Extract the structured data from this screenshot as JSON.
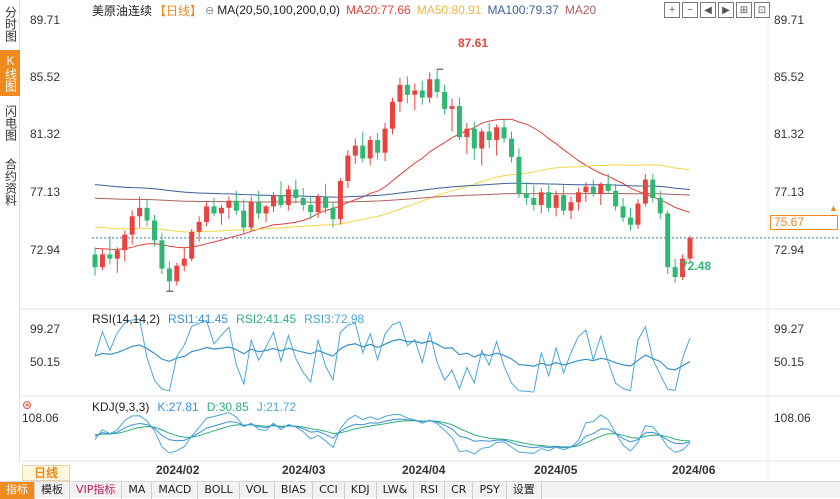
{
  "side_tabs": [
    {
      "label": "分时图",
      "active": false
    },
    {
      "label": "K线图",
      "active": true
    },
    {
      "label": "闪电图",
      "active": false
    },
    {
      "label": "合约资料",
      "active": false
    }
  ],
  "header": {
    "title": "美原油连续",
    "period": "【日线】",
    "gear": "⊖",
    "ma_label": "MA(20,50,100,200,0,0)",
    "ma20": "MA20:77.66",
    "ma50": "MA50:80.91",
    "ma100": "MA100:79.37",
    "ma200": "MA20"
  },
  "toolbar_icons": [
    "plus-icon",
    "minus-icon",
    "left-icon",
    "right-icon",
    "fullscreen-icon",
    "expand-icon"
  ],
  "toolbar_glyphs": [
    "+",
    "−",
    "◀",
    "▶",
    "⊞",
    "⊡"
  ],
  "price_axis": [
    "89.71",
    "85.52",
    "81.32",
    "77.13",
    "72.94"
  ],
  "current_price": "75.67",
  "peak_high": "87.61",
  "peak_low": "72.48",
  "rsi": {
    "label": "RSI(14,14,2)",
    "rsi1": "RSI1:41.45",
    "rsi2": "RSI2:41.45",
    "rsi3": "RSI3:72.98",
    "axis": [
      "99.27",
      "50.15"
    ]
  },
  "kdj": {
    "label": "KDJ(9,3,3)",
    "k": "K:27.81",
    "d": "D:30.85",
    "j": "J:21.72",
    "axis": [
      "108.06"
    ]
  },
  "x_labels": [
    "2024/02",
    "2024/03",
    "2024/04",
    "2024/05",
    "2024/06"
  ],
  "period_tab": "日线",
  "bottom_tabs": [
    {
      "label": "指标",
      "active": true
    },
    {
      "label": "模板"
    },
    {
      "label": "VIP指标",
      "vip": true
    },
    {
      "label": "MA"
    },
    {
      "label": "MACD"
    },
    {
      "label": "BOLL"
    },
    {
      "label": "VOL"
    },
    {
      "label": "BIAS"
    },
    {
      "label": "CCI"
    },
    {
      "label": "KDJ"
    },
    {
      "label": "LW&"
    },
    {
      "label": "RSI"
    },
    {
      "label": "CR"
    },
    {
      "label": "PSY"
    },
    {
      "label": "设置"
    }
  ],
  "colors": {
    "up": "#e8433f",
    "down": "#2eb872",
    "accent": "#ef8a1e",
    "ma20": "#e0403a",
    "ma50": "#f2d54a",
    "ma100": "#3d5f9a",
    "ma200": "#b06060",
    "rsi1": "#3a8fd8",
    "rsi2": "#2ab07a",
    "rsi3": "#4aa8d8"
  },
  "chart_data": {
    "type": "candlestick",
    "ylim": [
      70.85,
      91.8
    ],
    "candles": [
      [
        74.5,
        75.0,
        73.0,
        73.6
      ],
      [
        73.6,
        74.9,
        73.4,
        74.5
      ],
      [
        74.5,
        75.8,
        73.8,
        74.2
      ],
      [
        74.2,
        75.0,
        73.2,
        74.8
      ],
      [
        74.8,
        76.2,
        74.0,
        75.9
      ],
      [
        75.9,
        77.6,
        75.2,
        77.2
      ],
      [
        77.2,
        78.6,
        76.4,
        77.8
      ],
      [
        77.8,
        78.4,
        76.5,
        76.9
      ],
      [
        76.9,
        77.3,
        75.1,
        75.5
      ],
      [
        75.5,
        76.0,
        73.1,
        73.5
      ],
      [
        73.5,
        74.0,
        71.9,
        72.6
      ],
      [
        72.6,
        73.9,
        72.3,
        73.7
      ],
      [
        73.7,
        75.0,
        73.3,
        74.2
      ],
      [
        74.2,
        76.3,
        74.0,
        76.1
      ],
      [
        76.1,
        77.2,
        75.4,
        76.8
      ],
      [
        76.8,
        78.2,
        76.5,
        77.9
      ],
      [
        77.9,
        78.5,
        77.2,
        77.4
      ],
      [
        77.4,
        78.0,
        76.6,
        77.8
      ],
      [
        77.8,
        78.6,
        77.0,
        78.3
      ],
      [
        78.3,
        79.0,
        77.3,
        77.6
      ],
      [
        77.6,
        78.4,
        76.0,
        76.4
      ],
      [
        76.4,
        78.6,
        76.2,
        78.2
      ],
      [
        78.2,
        79.0,
        77.0,
        77.4
      ],
      [
        77.4,
        78.0,
        76.8,
        77.9
      ],
      [
        77.9,
        78.9,
        77.5,
        78.7
      ],
      [
        78.7,
        79.7,
        77.8,
        78.0
      ],
      [
        78.0,
        79.4,
        77.6,
        79.1
      ],
      [
        79.1,
        79.8,
        78.1,
        78.5
      ],
      [
        78.5,
        79.2,
        77.6,
        78.0
      ],
      [
        78.0,
        78.6,
        77.0,
        77.5
      ],
      [
        77.5,
        78.8,
        77.1,
        78.6
      ],
      [
        78.6,
        79.5,
        77.4,
        77.8
      ],
      [
        77.8,
        78.2,
        76.4,
        77.0
      ],
      [
        77.0,
        79.9,
        76.6,
        79.7
      ],
      [
        79.7,
        81.9,
        79.2,
        81.5
      ],
      [
        81.5,
        82.7,
        80.9,
        82.2
      ],
      [
        82.2,
        83.2,
        81.0,
        81.3
      ],
      [
        81.3,
        82.9,
        80.8,
        82.6
      ],
      [
        82.6,
        83.1,
        81.2,
        81.7
      ],
      [
        81.7,
        83.8,
        81.1,
        83.4
      ],
      [
        83.4,
        85.6,
        83.0,
        85.3
      ],
      [
        85.3,
        87.0,
        84.6,
        86.5
      ],
      [
        86.5,
        87.1,
        85.2,
        85.8
      ],
      [
        85.8,
        86.6,
        84.7,
        86.1
      ],
      [
        86.1,
        86.8,
        85.1,
        85.6
      ],
      [
        85.6,
        87.4,
        85.2,
        86.9
      ],
      [
        86.9,
        87.61,
        85.6,
        86.0
      ],
      [
        86.0,
        86.5,
        84.4,
        84.8
      ],
      [
        84.8,
        85.5,
        83.2,
        85.0
      ],
      [
        85.0,
        85.6,
        82.6,
        82.8
      ],
      [
        82.8,
        83.8,
        81.6,
        83.4
      ],
      [
        83.4,
        83.9,
        81.2,
        82.0
      ],
      [
        82.0,
        83.4,
        80.8,
        83.2
      ],
      [
        83.2,
        83.8,
        82.0,
        82.6
      ],
      [
        82.6,
        83.7,
        81.5,
        83.5
      ],
      [
        83.5,
        84.1,
        82.4,
        82.7
      ],
      [
        82.7,
        83.2,
        81.0,
        81.4
      ],
      [
        81.4,
        82.0,
        78.5,
        78.8
      ],
      [
        78.8,
        79.6,
        78.0,
        78.5
      ],
      [
        78.5,
        79.4,
        77.6,
        78.0
      ],
      [
        78.0,
        79.2,
        77.4,
        78.9
      ],
      [
        78.9,
        79.4,
        77.5,
        77.8
      ],
      [
        77.8,
        79.0,
        77.2,
        78.7
      ],
      [
        78.7,
        79.4,
        77.3,
        77.6
      ],
      [
        77.6,
        78.6,
        77.0,
        78.2
      ],
      [
        78.2,
        79.2,
        77.6,
        78.9
      ],
      [
        78.9,
        79.6,
        78.2,
        79.3
      ],
      [
        79.3,
        79.8,
        78.6,
        78.8
      ],
      [
        78.8,
        79.6,
        78.0,
        79.5
      ],
      [
        79.5,
        80.2,
        78.8,
        79.0
      ],
      [
        79.0,
        79.5,
        77.6,
        77.9
      ],
      [
        77.9,
        78.5,
        76.8,
        77.1
      ],
      [
        77.1,
        77.8,
        76.2,
        76.6
      ],
      [
        76.6,
        78.4,
        76.3,
        78.1
      ],
      [
        78.1,
        80.2,
        77.9,
        79.8
      ],
      [
        79.8,
        80.2,
        78.2,
        78.5
      ],
      [
        78.5,
        79.0,
        77.0,
        77.4
      ],
      [
        77.4,
        77.6,
        73.1,
        73.6
      ],
      [
        73.6,
        74.2,
        72.48,
        72.9
      ],
      [
        72.9,
        74.5,
        72.7,
        74.2
      ],
      [
        74.2,
        75.8,
        74.0,
        75.67
      ]
    ]
  }
}
